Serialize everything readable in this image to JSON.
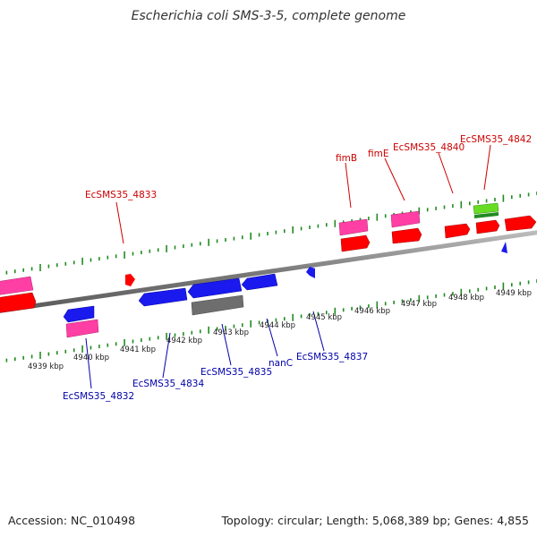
{
  "title": "Escherichia coli SMS-3-5, complete genome",
  "footer": {
    "accession": "Accession: NC_010498",
    "stats": "Topology: circular; Length: 5,068,389 bp; Genes: 4,855"
  },
  "colors": {
    "label_top": "#cc0000",
    "label_bottom": "#0000aa",
    "tick_green": "#228b22",
    "backbone": "#888888",
    "red": "#ff0000",
    "pink": "#ff3fa4",
    "blue": "#1a1aee",
    "gray": "#6e6e6e",
    "green": "#66dd22"
  },
  "scale_labels": [
    "4939 kbp",
    "4940 kbp",
    "4941 kbp",
    "4942 kbp",
    "4943 kbp",
    "4944 kbp",
    "4945 kbp",
    "4946 kbp",
    "4947 kbp",
    "4948 kbp",
    "4949 kbp"
  ],
  "top_labels": [
    "EcSMS35_4833",
    "fimB",
    "fimE",
    "EcSMS35_4840",
    "EcSMS35_4842"
  ],
  "bottom_labels": [
    "EcSMS35_4832",
    "EcSMS35_4834",
    "EcSMS35_4835",
    "nanC",
    "EcSMS35_4837"
  ]
}
